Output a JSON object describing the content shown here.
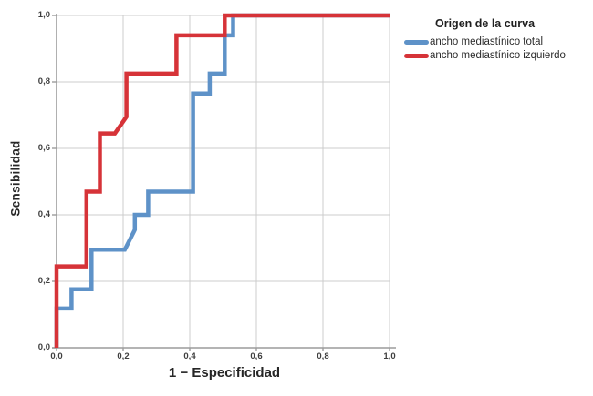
{
  "chart_data": {
    "type": "line",
    "subtype": "roc-step-curves",
    "title": "",
    "xlabel": "1 − Especificidad",
    "ylabel": "Sensibilidad",
    "xlim": [
      0,
      1
    ],
    "ylim": [
      0,
      1
    ],
    "grid": true,
    "x_tick_values": [
      0,
      0.2,
      0.4,
      0.6,
      0.8,
      1.0
    ],
    "x_tick_labels": [
      "0,0",
      "0,2",
      "0,4",
      "0,6",
      "0,8",
      "1,0"
    ],
    "y_tick_values": [
      0,
      0.2,
      0.4,
      0.6,
      0.8,
      1.0
    ],
    "y_tick_labels": [
      "0,0",
      "0,2",
      "0,4",
      "0,6",
      "0,8",
      "1,0"
    ],
    "legend": {
      "title": "Origen de la curva",
      "position": "right"
    },
    "series": [
      {
        "name": "ancho mediastínico total",
        "color": "#5E92C8",
        "points": [
          [
            0,
            0
          ],
          [
            0,
            0.118
          ],
          [
            0.045,
            0.118
          ],
          [
            0.045,
            0.176
          ],
          [
            0.105,
            0.176
          ],
          [
            0.105,
            0.295
          ],
          [
            0.205,
            0.295
          ],
          [
            0.235,
            0.355
          ],
          [
            0.235,
            0.4
          ],
          [
            0.275,
            0.4
          ],
          [
            0.275,
            0.47
          ],
          [
            0.41,
            0.47
          ],
          [
            0.41,
            0.765
          ],
          [
            0.46,
            0.765
          ],
          [
            0.46,
            0.825
          ],
          [
            0.505,
            0.825
          ],
          [
            0.505,
            0.94
          ],
          [
            0.53,
            0.94
          ],
          [
            0.53,
            1
          ],
          [
            1,
            1
          ]
        ]
      },
      {
        "name": "ancho mediastínico izquierdo",
        "color": "#D63338",
        "points": [
          [
            0,
            0
          ],
          [
            0,
            0.245
          ],
          [
            0.09,
            0.245
          ],
          [
            0.09,
            0.47
          ],
          [
            0.13,
            0.47
          ],
          [
            0.13,
            0.645
          ],
          [
            0.175,
            0.645
          ],
          [
            0.21,
            0.695
          ],
          [
            0.21,
            0.825
          ],
          [
            0.36,
            0.825
          ],
          [
            0.36,
            0.94
          ],
          [
            0.505,
            0.94
          ],
          [
            0.505,
            1
          ],
          [
            1,
            1
          ]
        ]
      }
    ],
    "colors": {
      "grid": "#CCCCCC",
      "axis": "#9C9C9C",
      "tick_text": "#3E3E3E",
      "title_text": "#262626"
    }
  }
}
